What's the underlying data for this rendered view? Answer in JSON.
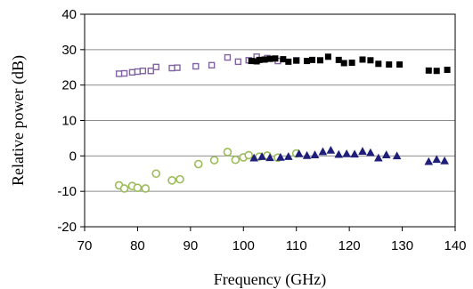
{
  "chart_data": {
    "type": "scatter",
    "title": "",
    "xlabel": "Frequency (GHz)",
    "ylabel": "Relative power (dB)",
    "xlim": [
      70,
      140
    ],
    "ylim": [
      -20,
      40
    ],
    "xticks": [
      70,
      80,
      90,
      100,
      110,
      120,
      130,
      140
    ],
    "yticks": [
      -20,
      -10,
      0,
      10,
      20,
      30,
      40
    ],
    "grid": "horizontal",
    "legend": "none",
    "series": [
      {
        "marker": "open-square",
        "color": "#8064a2",
        "points": [
          [
            76.5,
            23.2
          ],
          [
            77.5,
            23.3
          ],
          [
            79.0,
            23.6
          ],
          [
            80.0,
            23.8
          ],
          [
            81.0,
            24.0
          ],
          [
            82.5,
            24.0
          ],
          [
            83.5,
            25.1
          ],
          [
            86.5,
            24.8
          ],
          [
            87.5,
            24.9
          ],
          [
            91.0,
            25.3
          ],
          [
            94.0,
            25.6
          ],
          [
            97.0,
            27.8
          ],
          [
            99.0,
            26.6
          ],
          [
            101.0,
            27.0
          ],
          [
            102.5,
            28.0
          ],
          [
            104.5,
            27.6
          ],
          [
            106.5,
            26.8
          ],
          [
            110.0,
            27.0
          ]
        ]
      },
      {
        "marker": "filled-square",
        "color": "#000000",
        "points": [
          [
            101.5,
            26.8
          ],
          [
            102.5,
            26.7
          ],
          [
            103.0,
            27.1
          ],
          [
            104.0,
            27.2
          ],
          [
            105.0,
            27.4
          ],
          [
            106.0,
            27.5
          ],
          [
            107.5,
            27.3
          ],
          [
            108.5,
            26.6
          ],
          [
            110.0,
            26.9
          ],
          [
            112.0,
            26.8
          ],
          [
            113.0,
            27.1
          ],
          [
            114.5,
            27.0
          ],
          [
            116.0,
            28.0
          ],
          [
            118.0,
            27.1
          ],
          [
            119.0,
            26.2
          ],
          [
            120.5,
            26.3
          ],
          [
            122.5,
            27.2
          ],
          [
            124.0,
            27.0
          ],
          [
            125.5,
            26.0
          ],
          [
            127.5,
            25.8
          ],
          [
            129.5,
            25.8
          ],
          [
            135.0,
            24.1
          ],
          [
            136.5,
            24.0
          ],
          [
            138.5,
            24.3
          ]
        ]
      },
      {
        "marker": "open-circle",
        "color": "#9bbb59",
        "points": [
          [
            76.5,
            -8.3
          ],
          [
            77.5,
            -9.2
          ],
          [
            79.0,
            -8.5
          ],
          [
            80.0,
            -9.0
          ],
          [
            81.5,
            -9.2
          ],
          [
            83.5,
            -5.0
          ],
          [
            86.5,
            -6.9
          ],
          [
            88.0,
            -6.6
          ],
          [
            91.5,
            -2.3
          ],
          [
            94.5,
            -1.2
          ],
          [
            97.0,
            1.1
          ],
          [
            98.5,
            -1.1
          ],
          [
            100.0,
            -0.4
          ],
          [
            101.0,
            0.2
          ],
          [
            103.0,
            -0.2
          ],
          [
            104.5,
            0.1
          ],
          [
            106.5,
            -0.5
          ],
          [
            110.0,
            0.7
          ]
        ]
      },
      {
        "marker": "filled-triangle",
        "color": "#1f1f7a",
        "points": [
          [
            102.0,
            -0.6
          ],
          [
            103.5,
            -0.2
          ],
          [
            105.0,
            -0.5
          ],
          [
            107.0,
            -0.4
          ],
          [
            108.5,
            -0.2
          ],
          [
            110.5,
            0.6
          ],
          [
            112.0,
            0.1
          ],
          [
            113.5,
            0.3
          ],
          [
            115.0,
            1.2
          ],
          [
            116.5,
            1.6
          ],
          [
            118.0,
            0.4
          ],
          [
            119.5,
            0.6
          ],
          [
            121.0,
            0.5
          ],
          [
            122.5,
            1.3
          ],
          [
            124.0,
            0.9
          ],
          [
            125.5,
            -0.6
          ],
          [
            127.0,
            0.3
          ],
          [
            129.0,
            0.0
          ],
          [
            135.0,
            -1.6
          ],
          [
            136.5,
            -1.0
          ],
          [
            138.0,
            -1.4
          ]
        ]
      }
    ]
  }
}
